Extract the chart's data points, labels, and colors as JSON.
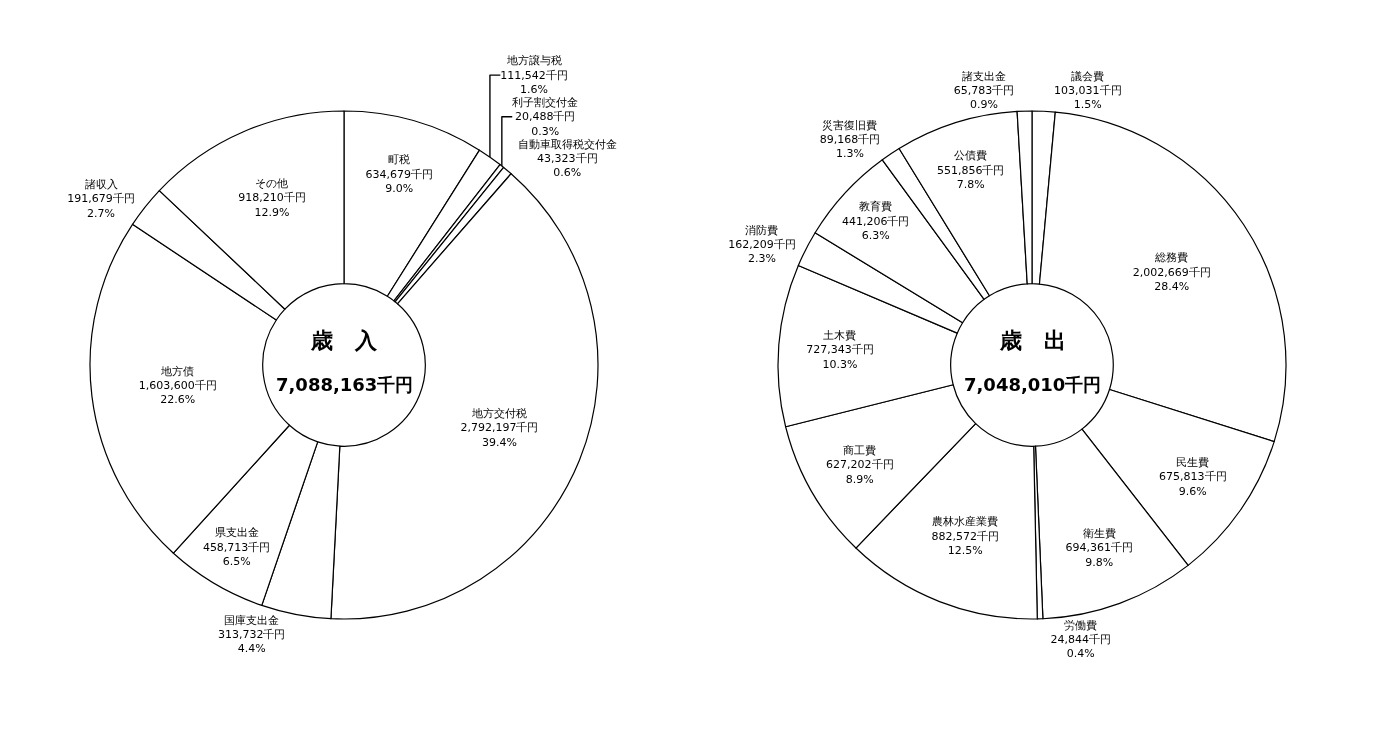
{
  "chart_data": [
    {
      "type": "donut",
      "title": "歳　入",
      "annotations": [
        "7,088,163千円"
      ],
      "categories": [
        "町税",
        "地方譲与税",
        "利子割交付金",
        "自動車取得税交付金",
        "地方交付税",
        "国庫支出金",
        "県支出金",
        "地方債",
        "諸収入",
        "その他"
      ],
      "values": [
        634679,
        111542,
        20488,
        43323,
        2792197,
        313732,
        458713,
        1603600,
        191679,
        918210
      ],
      "value_labels": [
        "634,679千円\n9.0%",
        "111,542千円\n1.6%",
        "20,488千円\n0.3%",
        "43,323千円\n0.6%",
        "2,792,197千円\n39.4%",
        "313,732千円\n4.4%",
        "458,713千円\n6.5%",
        "1,603,600千円\n22.6%",
        "191,679千円\n2.7%",
        "918,210千円\n12.9%"
      ],
      "colors": [
        "#ffffff",
        "#ffffff",
        "#ffffff",
        "#ffffff",
        "#ffffff",
        "#ffffff",
        "#ffffff",
        "#ffffff",
        "#ffffff",
        "#ffffff"
      ]
    },
    {
      "type": "donut",
      "title": "歳　出",
      "annotations": [
        "7,048,010千円"
      ],
      "categories": [
        "議会費",
        "総務費",
        "民生費",
        "衛生費",
        "労働費",
        "農林水産業費",
        "商工費",
        "土木費",
        "消防費",
        "教育費",
        "災害復旧費",
        "公債費",
        "諸支出金"
      ],
      "values": [
        103031,
        2002669,
        675813,
        694361,
        24844,
        882572,
        627202,
        727343,
        162209,
        441206,
        89168,
        551856,
        65783
      ],
      "value_labels": [
        "103,031千円\n1.5%",
        "2,002,669千円\n28.4%",
        "675,813千円\n9.6%",
        "694,361千円\n9.8%",
        "24,844千円\n0.4%",
        "882,572千円\n12.5%",
        "627,202千円\n8.9%",
        "727,343千円\n10.3%",
        "162,209千円\n2.3%",
        "441,206千円\n6.3%",
        "89,168千円\n1.3%",
        "551,856千円\n7.8%",
        "65,783千円\n0.9%"
      ],
      "colors": [
        "#ffffff",
        "#ffffff",
        "#ffffff",
        "#ffffff",
        "#ffffff",
        "#ffffff",
        "#ffffff",
        "#ffffff",
        "#ffffff",
        "#ffffff",
        "#ffffff",
        "#ffffff",
        "#ffffff"
      ]
    }
  ]
}
